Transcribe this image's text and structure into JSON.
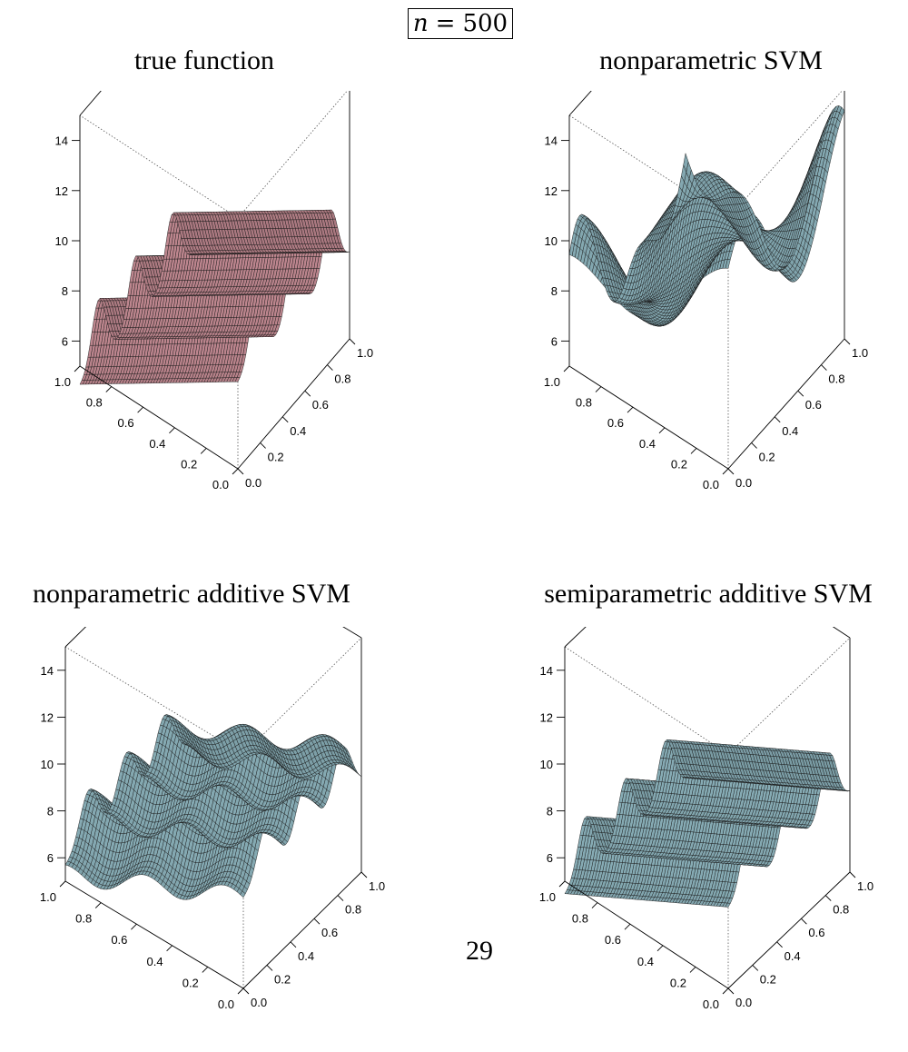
{
  "header": {
    "var": "n",
    "eq": "=",
    "value": "500"
  },
  "page_number": "29",
  "colors": {
    "true_surface": "#e6a3ad",
    "svm_surface": "#a4d1dc",
    "mesh": "#1a1a1a",
    "box": "#000000",
    "hidden_edges": "#555555"
  },
  "chart_data": [
    {
      "type": "surface",
      "title": "true function",
      "surface_color": "#e6a3ad",
      "zlim": [
        5,
        15
      ],
      "xlim": [
        0.0,
        1.0
      ],
      "ylim": [
        0.0,
        1.0
      ],
      "z_ticks": [
        "6",
        "8",
        "10",
        "12",
        "14"
      ],
      "x_ticks": [
        "0.0",
        "0.2",
        "0.4",
        "0.6",
        "0.8",
        "1.0"
      ],
      "y_ticks": [
        "0.0",
        "0.2",
        "0.4",
        "0.6",
        "0.8",
        "1.0"
      ],
      "grid": "60x60 mesh",
      "description": "smooth additive ridges along one axis"
    },
    {
      "type": "surface",
      "title": "nonparametric SVM",
      "surface_color": "#a4d1dc",
      "zlim": [
        5,
        15
      ],
      "xlim": [
        0.0,
        1.0
      ],
      "ylim": [
        0.0,
        1.0
      ],
      "z_ticks": [
        "6",
        "8",
        "10",
        "12",
        "14"
      ],
      "x_ticks": [
        "0.0",
        "0.2",
        "0.4",
        "0.6",
        "0.8",
        "1.0"
      ],
      "y_ticks": [
        "0.0",
        "0.2",
        "0.4",
        "0.6",
        "0.8",
        "1.0"
      ],
      "grid": "60x60 mesh",
      "description": "bumpy surface with non-additive interactions"
    },
    {
      "type": "surface",
      "title": "nonparametric additive SVM",
      "surface_color": "#a4d1dc",
      "zlim": [
        5,
        15
      ],
      "xlim": [
        0.0,
        1.0
      ],
      "ylim": [
        0.0,
        1.0
      ],
      "z_ticks": [
        "6",
        "8",
        "10",
        "12",
        "14"
      ],
      "x_ticks": [
        "0.0",
        "0.2",
        "0.4",
        "0.6",
        "0.8",
        "1.0"
      ],
      "y_ticks": [
        "0.0",
        "0.2",
        "0.4",
        "0.6",
        "0.8",
        "1.0"
      ],
      "grid": "60x60 mesh",
      "description": "ridges with smaller secondary waves"
    },
    {
      "type": "surface",
      "title": "semiparametric additive SVM",
      "surface_color": "#a4d1dc",
      "zlim": [
        5,
        15
      ],
      "xlim": [
        0.0,
        1.0
      ],
      "ylim": [
        0.0,
        1.0
      ],
      "z_ticks": [
        "6",
        "8",
        "10",
        "12",
        "14"
      ],
      "x_ticks": [
        "0.0",
        "0.2",
        "0.4",
        "0.6",
        "0.8",
        "1.0"
      ],
      "y_ticks": [
        "0.0",
        "0.2",
        "0.4",
        "0.6",
        "0.8",
        "1.0"
      ],
      "grid": "60x60 mesh",
      "description": "ridges closely matching the true function"
    }
  ]
}
